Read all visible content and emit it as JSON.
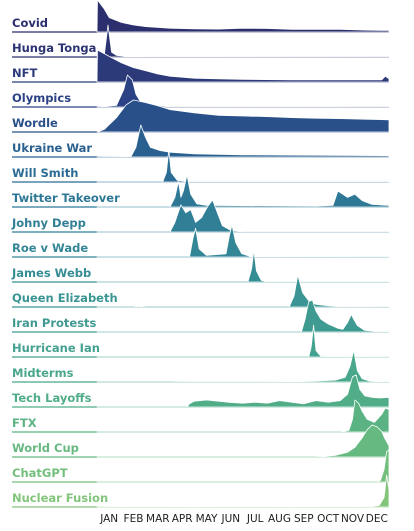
{
  "chart_data": {
    "type": "area",
    "style": "ridgeline",
    "x_axis": {
      "label": "",
      "ticks": [
        "JAN",
        "FEB",
        "MAR",
        "APR",
        "MAY",
        "JUN",
        "JUL",
        "AUG",
        "SEP",
        "OCT",
        "NOV",
        "DEC"
      ],
      "range": [
        0,
        12
      ]
    },
    "y_axis": {
      "label": "",
      "range": [
        0,
        1
      ]
    },
    "legend": "none",
    "grid": false,
    "series": [
      {
        "name": "Covid",
        "color": "#2b2f6e",
        "points": [
          [
            0,
            0
          ],
          [
            0.02,
            1
          ],
          [
            0.3,
            0.72
          ],
          [
            0.5,
            0.45
          ],
          [
            1,
            0.3
          ],
          [
            1.5,
            0.22
          ],
          [
            2,
            0.17
          ],
          [
            3,
            0.12
          ],
          [
            4,
            0.1
          ],
          [
            5,
            0.09
          ],
          [
            6,
            0.12
          ],
          [
            7,
            0.11
          ],
          [
            8,
            0.08
          ],
          [
            9,
            0.08
          ],
          [
            10,
            0.08
          ],
          [
            11,
            0.06
          ],
          [
            12,
            0.05
          ]
        ]
      },
      {
        "name": "Hunga Tonga",
        "color": "#2c3372",
        "points": [
          [
            0,
            0
          ],
          [
            0.3,
            0.06
          ],
          [
            0.45,
            1
          ],
          [
            0.6,
            0.15
          ],
          [
            0.8,
            0.05
          ],
          [
            1.2,
            0.02
          ],
          [
            12,
            0.01
          ]
        ]
      },
      {
        "name": "NFT",
        "color": "#2c3a7a",
        "points": [
          [
            0,
            0
          ],
          [
            0.02,
            1
          ],
          [
            0.5,
            0.8
          ],
          [
            1,
            0.6
          ],
          [
            1.5,
            0.45
          ],
          [
            2,
            0.35
          ],
          [
            2.5,
            0.25
          ],
          [
            3,
            0.18
          ],
          [
            4,
            0.12
          ],
          [
            5,
            0.1
          ],
          [
            6,
            0.08
          ],
          [
            8,
            0.07
          ],
          [
            10,
            0.07
          ],
          [
            11.7,
            0.07
          ],
          [
            11.85,
            0.18
          ],
          [
            12,
            0.1
          ]
        ]
      },
      {
        "name": "Olympics",
        "color": "#2b4284",
        "points": [
          [
            0,
            0
          ],
          [
            0.8,
            0.05
          ],
          [
            1.1,
            0.55
          ],
          [
            1.25,
            1
          ],
          [
            1.45,
            0.85
          ],
          [
            1.6,
            0.4
          ],
          [
            1.8,
            0.15
          ],
          [
            2.2,
            0.05
          ],
          [
            3,
            0.02
          ],
          [
            12,
            0.01
          ]
        ]
      },
      {
        "name": "Wordle",
        "color": "#2a5089",
        "points": [
          [
            0,
            0
          ],
          [
            0.3,
            0.08
          ],
          [
            0.8,
            0.45
          ],
          [
            1.2,
            0.85
          ],
          [
            1.5,
            1
          ],
          [
            2,
            0.92
          ],
          [
            2.5,
            0.82
          ],
          [
            3,
            0.7
          ],
          [
            4,
            0.6
          ],
          [
            5,
            0.52
          ],
          [
            6,
            0.5
          ],
          [
            7,
            0.48
          ],
          [
            8,
            0.45
          ],
          [
            9,
            0.43
          ],
          [
            10,
            0.42
          ],
          [
            11,
            0.4
          ],
          [
            12,
            0.38
          ]
        ]
      },
      {
        "name": "Ukraine War",
        "color": "#2a6090",
        "points": [
          [
            0,
            0
          ],
          [
            1.4,
            0.02
          ],
          [
            1.6,
            0.3
          ],
          [
            1.8,
            1
          ],
          [
            2,
            0.6
          ],
          [
            2.2,
            0.3
          ],
          [
            2.6,
            0.2
          ],
          [
            3,
            0.15
          ],
          [
            4,
            0.1
          ],
          [
            6,
            0.07
          ],
          [
            8,
            0.06
          ],
          [
            10,
            0.05
          ],
          [
            12,
            0.04
          ]
        ]
      },
      {
        "name": "Will Smith",
        "color": "#2b6c95",
        "points": [
          [
            0,
            0
          ],
          [
            2.7,
            0
          ],
          [
            2.85,
            0.3
          ],
          [
            2.95,
            1
          ],
          [
            3.05,
            0.3
          ],
          [
            3.3,
            0.05
          ],
          [
            3.8,
            0.01
          ],
          [
            12,
            0.01
          ]
        ]
      },
      {
        "name": "Twitter Takeover",
        "color": "#2e7896",
        "points": [
          [
            0,
            0
          ],
          [
            3,
            0
          ],
          [
            3.2,
            0.3
          ],
          [
            3.35,
            0.8
          ],
          [
            3.45,
            0.3
          ],
          [
            3.55,
            0.5
          ],
          [
            3.7,
            1
          ],
          [
            3.85,
            0.4
          ],
          [
            4.1,
            0.1
          ],
          [
            4.5,
            0.05
          ],
          [
            9,
            0.03
          ],
          [
            9.7,
            0.05
          ],
          [
            9.9,
            0.5
          ],
          [
            10.3,
            0.3
          ],
          [
            10.6,
            0.4
          ],
          [
            10.9,
            0.2
          ],
          [
            11.3,
            0.08
          ],
          [
            12,
            0.05
          ]
        ]
      },
      {
        "name": "Johny Depp",
        "color": "#317f96",
        "points": [
          [
            0,
            0
          ],
          [
            3,
            0
          ],
          [
            3.2,
            0.3
          ],
          [
            3.45,
            0.85
          ],
          [
            3.65,
            0.6
          ],
          [
            3.85,
            0.7
          ],
          [
            4.05,
            0.3
          ],
          [
            4.3,
            0.45
          ],
          [
            4.55,
            0.8
          ],
          [
            4.75,
            1
          ],
          [
            4.95,
            0.6
          ],
          [
            5.15,
            0.2
          ],
          [
            5.5,
            0.05
          ],
          [
            6,
            0.01
          ],
          [
            12,
            0.01
          ]
        ]
      },
      {
        "name": "Roe v Wade",
        "color": "#338696",
        "points": [
          [
            0,
            0
          ],
          [
            3.8,
            0
          ],
          [
            3.95,
            0.6
          ],
          [
            4.05,
            0.9
          ],
          [
            4.2,
            0.25
          ],
          [
            4.5,
            0.05
          ],
          [
            5.3,
            0.1
          ],
          [
            5.45,
            0.7
          ],
          [
            5.55,
            1
          ],
          [
            5.7,
            0.45
          ],
          [
            5.95,
            0.1
          ],
          [
            6.3,
            0.02
          ],
          [
            12,
            0.01
          ]
        ]
      },
      {
        "name": "James Webb",
        "color": "#368e95",
        "points": [
          [
            0,
            0
          ],
          [
            6.2,
            0
          ],
          [
            6.35,
            0.4
          ],
          [
            6.45,
            1
          ],
          [
            6.55,
            0.35
          ],
          [
            6.75,
            0.05
          ],
          [
            7,
            0.01
          ],
          [
            12,
            0.01
          ]
        ]
      },
      {
        "name": "Queen Elizabeth",
        "color": "#3a9594",
        "points": [
          [
            0,
            0
          ],
          [
            1.5,
            0
          ],
          [
            1.7,
            0.03
          ],
          [
            2,
            0
          ],
          [
            7.9,
            0
          ],
          [
            8.1,
            0.35
          ],
          [
            8.25,
            1
          ],
          [
            8.45,
            0.45
          ],
          [
            8.7,
            0.2
          ],
          [
            9,
            0.08
          ],
          [
            9.5,
            0.04
          ],
          [
            10,
            0.02
          ],
          [
            12,
            0.01
          ]
        ]
      },
      {
        "name": "Iran Protests",
        "color": "#3f9b92",
        "points": [
          [
            0,
            0
          ],
          [
            8.4,
            0
          ],
          [
            8.55,
            0.4
          ],
          [
            8.7,
            0.95
          ],
          [
            8.85,
            1
          ],
          [
            9,
            0.65
          ],
          [
            9.2,
            0.4
          ],
          [
            9.5,
            0.25
          ],
          [
            9.9,
            0.12
          ],
          [
            10.1,
            0.08
          ],
          [
            10.3,
            0.3
          ],
          [
            10.45,
            0.55
          ],
          [
            10.55,
            0.4
          ],
          [
            10.7,
            0.2
          ],
          [
            11,
            0.05
          ],
          [
            11.5,
            0.02
          ],
          [
            12,
            0.01
          ]
        ]
      },
      {
        "name": "Hurricane Ian",
        "color": "#43a18f",
        "points": [
          [
            0,
            0
          ],
          [
            8.7,
            0
          ],
          [
            8.8,
            0.3
          ],
          [
            8.9,
            1
          ],
          [
            9.0,
            0.2
          ],
          [
            9.2,
            0.02
          ],
          [
            12,
            0.01
          ]
        ]
      },
      {
        "name": "Midterms",
        "color": "#49a78c",
        "points": [
          [
            0,
            0
          ],
          [
            3,
            0
          ],
          [
            4,
            0.01
          ],
          [
            6,
            0.01
          ],
          [
            8,
            0.02
          ],
          [
            9,
            0.03
          ],
          [
            9.8,
            0.06
          ],
          [
            10.2,
            0.15
          ],
          [
            10.4,
            0.5
          ],
          [
            10.55,
            1
          ],
          [
            10.7,
            0.35
          ],
          [
            10.9,
            0.1
          ],
          [
            11.2,
            0.03
          ],
          [
            12,
            0.01
          ]
        ]
      },
      {
        "name": "Tech Layoffs",
        "color": "#51ad88",
        "points": [
          [
            0,
            0
          ],
          [
            3.7,
            0
          ],
          [
            3.8,
            0.1
          ],
          [
            4,
            0.18
          ],
          [
            4.5,
            0.22
          ],
          [
            5,
            0.18
          ],
          [
            5.5,
            0.14
          ],
          [
            6,
            0.12
          ],
          [
            6.5,
            0.15
          ],
          [
            7,
            0.12
          ],
          [
            7.5,
            0.2
          ],
          [
            8,
            0.15
          ],
          [
            8.5,
            0.1
          ],
          [
            9,
            0.2
          ],
          [
            9.5,
            0.15
          ],
          [
            10,
            0.2
          ],
          [
            10.3,
            0.4
          ],
          [
            10.5,
            0.95
          ],
          [
            10.65,
            1
          ],
          [
            10.8,
            0.55
          ],
          [
            11,
            0.35
          ],
          [
            11.3,
            0.3
          ],
          [
            11.6,
            0.28
          ],
          [
            12,
            0.3
          ]
        ]
      },
      {
        "name": "FTX",
        "color": "#5bb384",
        "points": [
          [
            0,
            0
          ],
          [
            10,
            0
          ],
          [
            10.35,
            0.05
          ],
          [
            10.5,
            0.4
          ],
          [
            10.6,
            1
          ],
          [
            10.75,
            0.9
          ],
          [
            10.9,
            0.65
          ],
          [
            11.1,
            0.4
          ],
          [
            11.4,
            0.3
          ],
          [
            11.7,
            0.55
          ],
          [
            11.85,
            0.75
          ],
          [
            12,
            0.7
          ]
        ]
      },
      {
        "name": "World Cup",
        "color": "#66b980",
        "points": [
          [
            0,
            0
          ],
          [
            9,
            0
          ],
          [
            9.8,
            0.05
          ],
          [
            10.3,
            0.15
          ],
          [
            10.6,
            0.3
          ],
          [
            10.9,
            0.6
          ],
          [
            11.1,
            0.85
          ],
          [
            11.3,
            1
          ],
          [
            11.5,
            0.95
          ],
          [
            11.7,
            0.8
          ],
          [
            11.85,
            0.55
          ],
          [
            12,
            0.35
          ]
        ]
      },
      {
        "name": "ChatGPT",
        "color": "#73bf7c",
        "points": [
          [
            0,
            0
          ],
          [
            11.5,
            0
          ],
          [
            11.65,
            0.05
          ],
          [
            11.8,
            0.4
          ],
          [
            11.9,
            0.95
          ],
          [
            12,
            1
          ]
        ]
      },
      {
        "name": "Nuclear Fusion",
        "color": "#82c57b",
        "points": [
          [
            0,
            0
          ],
          [
            1,
            0.02
          ],
          [
            2,
            0.01
          ],
          [
            4,
            0.02
          ],
          [
            6,
            0.01
          ],
          [
            8,
            0.02
          ],
          [
            10,
            0.01
          ],
          [
            11.3,
            0.02
          ],
          [
            11.6,
            0.05
          ],
          [
            11.8,
            0.3
          ],
          [
            11.9,
            1
          ],
          [
            12,
            0.55
          ]
        ]
      }
    ]
  }
}
